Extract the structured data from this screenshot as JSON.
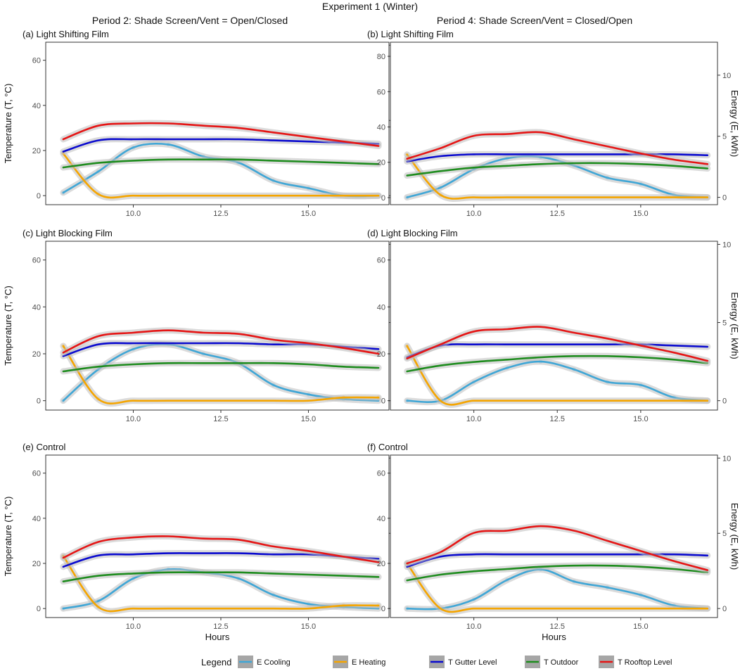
{
  "figure_title": "Experiment 1 (Winter)",
  "column_titles": [
    "Period 2: Shade Screen/Vent = Open/Closed",
    "Period 4: Shade Screen/Vent = Closed/Open"
  ],
  "x_axis_label": "Hours",
  "y_axis_left_label": "Temperature (T, °C)",
  "y_axis_right_label": "Energy (E, kWh)",
  "legend": {
    "title": "Legend",
    "items": [
      {
        "label": "E Cooling",
        "color": "#3fa6d6"
      },
      {
        "label": "E Heating",
        "color": "#f5a500"
      },
      {
        "label": "T Gutter Level",
        "color": "#0a0acf"
      },
      {
        "label": "T Outdoor",
        "color": "#1e8c1e"
      },
      {
        "label": "T Rooftop Level",
        "color": "#e51515"
      }
    ]
  },
  "chart_data": [
    {
      "panel": "(a) Light Shifting Film",
      "type": "line",
      "xlim": [
        7.5,
        17.3
      ],
      "ylim": [
        -4,
        68
      ],
      "y2lim": [
        -0.6,
        10.2
      ],
      "xticks": [
        "10.0",
        "12.5",
        "15.0"
      ],
      "yticks": [
        "0",
        "20",
        "40",
        "60"
      ],
      "y2ticks": [
        "0",
        "5",
        "10"
      ],
      "x": [
        8,
        9,
        10,
        11,
        12,
        13,
        14,
        15,
        16,
        17
      ],
      "series": [
        {
          "name": "T Rooftop Level",
          "axis": "temperature",
          "values": [
            25,
            31,
            32,
            32,
            31,
            30,
            28,
            26,
            24,
            22
          ]
        },
        {
          "name": "T Gutter Level",
          "axis": "temperature",
          "values": [
            19.5,
            24.5,
            25,
            25,
            25,
            25,
            24.5,
            24,
            23.5,
            23
          ]
        },
        {
          "name": "T Outdoor",
          "axis": "temperature",
          "values": [
            12.5,
            14.5,
            15.5,
            16,
            16,
            16,
            15.5,
            15,
            14.5,
            14
          ]
        },
        {
          "name": "E Cooling",
          "axis": "energy",
          "values": [
            0.2,
            1.6,
            3.2,
            3.4,
            2.6,
            2.2,
            1.0,
            0.5,
            0,
            0
          ]
        },
        {
          "name": "E Heating",
          "axis": "energy",
          "values": [
            2.8,
            0.1,
            0,
            0,
            0,
            0,
            0,
            0,
            0,
            0
          ]
        }
      ]
    },
    {
      "panel": "(b) Light Shifting Film",
      "type": "line",
      "xlim": [
        7.5,
        17.3
      ],
      "ylim": [
        -4,
        88
      ],
      "y2lim": [
        -0.6,
        12.7
      ],
      "xticks": [
        "10.0",
        "12.5",
        "15.0"
      ],
      "yticks": [
        "0",
        "20",
        "40",
        "60",
        "80"
      ],
      "y2ticks": [
        "0",
        "5",
        "10"
      ],
      "x": [
        8,
        9,
        10,
        11,
        12,
        13,
        14,
        15,
        16,
        17
      ],
      "series": [
        {
          "name": "T Rooftop Level",
          "axis": "temperature",
          "values": [
            22,
            28,
            35,
            36,
            37,
            33,
            29,
            25,
            21.5,
            19
          ]
        },
        {
          "name": "T Gutter Level",
          "axis": "temperature",
          "values": [
            20.5,
            23.5,
            24.5,
            24.5,
            24.5,
            24.5,
            24.5,
            24.5,
            24.5,
            24
          ]
        },
        {
          "name": "T Outdoor",
          "axis": "temperature",
          "values": [
            12.5,
            15,
            17,
            18,
            19,
            19.5,
            19.5,
            19,
            18,
            16.5
          ]
        },
        {
          "name": "E Cooling",
          "axis": "energy",
          "values": [
            0,
            0.8,
            2.3,
            3.2,
            3.3,
            2.6,
            1.6,
            1.1,
            0.2,
            0
          ]
        },
        {
          "name": "E Heating",
          "axis": "energy",
          "values": [
            3.5,
            0.2,
            0,
            0,
            0,
            0,
            0,
            0,
            0,
            0
          ]
        }
      ]
    },
    {
      "panel": "(c) Light Blocking Film",
      "type": "line",
      "xlim": [
        7.5,
        17.3
      ],
      "ylim": [
        -4,
        68
      ],
      "y2lim": [
        -0.6,
        10.2
      ],
      "xticks": [
        "10.0",
        "12.5",
        "15.0"
      ],
      "yticks": [
        "0",
        "20",
        "40",
        "60"
      ],
      "y2ticks": [
        "0",
        "5",
        "10"
      ],
      "x": [
        8,
        9,
        10,
        11,
        12,
        13,
        14,
        15,
        16,
        17
      ],
      "series": [
        {
          "name": "T Rooftop Level",
          "axis": "temperature",
          "values": [
            20.5,
            27.5,
            29,
            30,
            29,
            28.5,
            26,
            24.5,
            22.5,
            20
          ]
        },
        {
          "name": "T Gutter Level",
          "axis": "temperature",
          "values": [
            19,
            24,
            24.5,
            24.5,
            24.5,
            24.5,
            24,
            24,
            23,
            22
          ]
        },
        {
          "name": "T Outdoor",
          "axis": "temperature",
          "values": [
            12.5,
            14.5,
            15.5,
            16,
            16,
            16,
            16,
            15.5,
            14.5,
            14
          ]
        },
        {
          "name": "E Cooling",
          "axis": "energy",
          "values": [
            0,
            2.0,
            3.3,
            3.6,
            3.0,
            2.4,
            1.0,
            0.4,
            0.1,
            0
          ]
        },
        {
          "name": "E Heating",
          "axis": "energy",
          "values": [
            3.5,
            0.1,
            0,
            0,
            0,
            0,
            0,
            0,
            0.2,
            0.2
          ]
        }
      ]
    },
    {
      "panel": "(d) Light Blocking Film",
      "type": "line",
      "xlim": [
        7.5,
        17.3
      ],
      "ylim": [
        -4,
        68
      ],
      "y2lim": [
        -0.6,
        10.2
      ],
      "xticks": [
        "10.0",
        "12.5",
        "15.0"
      ],
      "yticks": [
        "0",
        "20",
        "40",
        "60"
      ],
      "y2ticks": [
        "0",
        "5",
        "10"
      ],
      "x": [
        8,
        9,
        10,
        11,
        12,
        13,
        14,
        15,
        16,
        17
      ],
      "series": [
        {
          "name": "T Rooftop Level",
          "axis": "temperature",
          "values": [
            18,
            24,
            29.5,
            30.5,
            31.5,
            29,
            26.5,
            23.5,
            20.5,
            17
          ]
        },
        {
          "name": "T Gutter Level",
          "axis": "temperature",
          "values": [
            18.5,
            23.5,
            24,
            24,
            24,
            24,
            24,
            24,
            23.5,
            23
          ]
        },
        {
          "name": "T Outdoor",
          "axis": "temperature",
          "values": [
            12.5,
            15,
            16.5,
            17.5,
            18.5,
            19,
            19,
            18.5,
            17.5,
            16
          ]
        },
        {
          "name": "E Cooling",
          "axis": "energy",
          "values": [
            0,
            0,
            1.2,
            2.1,
            2.5,
            2.0,
            1.2,
            1.0,
            0.2,
            0
          ]
        },
        {
          "name": "E Heating",
          "axis": "energy",
          "values": [
            3.5,
            0,
            0,
            0,
            0,
            0,
            0,
            0,
            0,
            0
          ]
        }
      ]
    },
    {
      "panel": "(e) Control",
      "type": "line",
      "xlim": [
        7.5,
        17.3
      ],
      "ylim": [
        -4,
        68
      ],
      "y2lim": [
        -0.6,
        10.2
      ],
      "xticks": [
        "10.0",
        "12.5",
        "15.0"
      ],
      "yticks": [
        "0",
        "20",
        "40",
        "60"
      ],
      "y2ticks": [
        "0",
        "5",
        "10"
      ],
      "x": [
        8,
        9,
        10,
        11,
        12,
        13,
        14,
        15,
        16,
        17
      ],
      "series": [
        {
          "name": "T Rooftop Level",
          "axis": "temperature",
          "values": [
            22.5,
            29.5,
            31.5,
            32,
            31,
            30.5,
            27.5,
            25.5,
            23,
            20.5
          ]
        },
        {
          "name": "T Gutter Level",
          "axis": "temperature",
          "values": [
            18.5,
            23.5,
            24,
            24.5,
            24.5,
            24.5,
            24,
            24,
            23,
            22
          ]
        },
        {
          "name": "T Outdoor",
          "axis": "temperature",
          "values": [
            12,
            14.5,
            15.5,
            16,
            16,
            16,
            15.5,
            15,
            14.5,
            14
          ]
        },
        {
          "name": "E Cooling",
          "axis": "energy",
          "values": [
            0,
            0.5,
            2.0,
            2.6,
            2.4,
            2.0,
            0.9,
            0.3,
            0.1,
            0
          ]
        },
        {
          "name": "E Heating",
          "axis": "energy",
          "values": [
            3.5,
            0.1,
            0,
            0,
            0,
            0,
            0,
            0,
            0.2,
            0.2
          ]
        }
      ]
    },
    {
      "panel": "(f) Control",
      "type": "line",
      "xlim": [
        7.5,
        17.3
      ],
      "ylim": [
        -4,
        68
      ],
      "y2lim": [
        -0.6,
        10.2
      ],
      "xticks": [
        "10.0",
        "12.5",
        "15.0"
      ],
      "yticks": [
        "0",
        "20",
        "40",
        "60"
      ],
      "y2ticks": [
        "0",
        "5",
        "10"
      ],
      "x": [
        8,
        9,
        10,
        11,
        12,
        13,
        14,
        15,
        16,
        17
      ],
      "series": [
        {
          "name": "T Rooftop Level",
          "axis": "temperature",
          "values": [
            20,
            25,
            33.5,
            34.5,
            36.5,
            34.5,
            30,
            25.5,
            21,
            17
          ]
        },
        {
          "name": "T Gutter Level",
          "axis": "temperature",
          "values": [
            18.5,
            23,
            24,
            24,
            24,
            24,
            24,
            24,
            24,
            23.5
          ]
        },
        {
          "name": "T Outdoor",
          "axis": "temperature",
          "values": [
            12.5,
            15,
            16.5,
            17.5,
            18.5,
            19,
            19,
            18.5,
            17.5,
            16
          ]
        },
        {
          "name": "E Cooling",
          "axis": "energy",
          "values": [
            0,
            0,
            0.6,
            1.9,
            2.6,
            1.8,
            1.4,
            0.9,
            0.2,
            0
          ]
        },
        {
          "name": "E Heating",
          "axis": "energy",
          "values": [
            3.0,
            0,
            0,
            0,
            0,
            0,
            0,
            0,
            0,
            0
          ]
        }
      ]
    }
  ]
}
